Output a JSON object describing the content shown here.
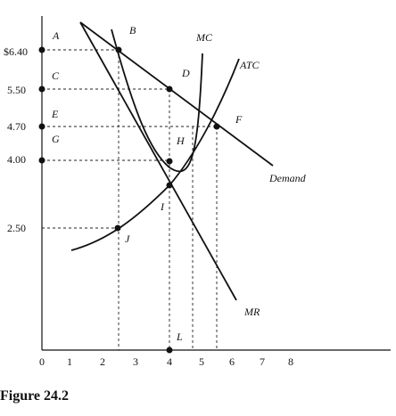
{
  "figure": {
    "caption": "Figure 24.2"
  },
  "axes": {
    "x_ticks": [
      "0",
      "1",
      "2",
      "3",
      "4",
      "5",
      "6",
      "7",
      "8"
    ],
    "y_ticks": [
      {
        "value": 6.4,
        "label": "$6.40"
      },
      {
        "value": 5.5,
        "label": "5.50"
      },
      {
        "value": 4.7,
        "label": "4.70"
      },
      {
        "value": 4.0,
        "label": "4.00"
      },
      {
        "value": 2.5,
        "label": "2.50"
      }
    ]
  },
  "curves": {
    "demand": {
      "label": "Demand"
    },
    "mr": {
      "label": "MR"
    },
    "mc": {
      "label": "MC"
    },
    "atc": {
      "label": "ATC"
    }
  },
  "points": {
    "A": "A",
    "B": "B",
    "C": "C",
    "D": "D",
    "E": "E",
    "F": "F",
    "G": "G",
    "H": "H",
    "I": "I",
    "J": "J",
    "L": "L"
  }
}
